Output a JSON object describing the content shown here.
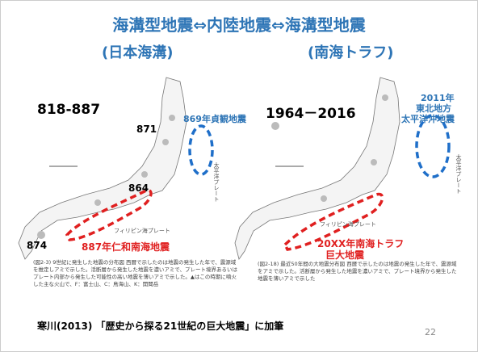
{
  "title": "海溝型地震⇔内陸地震⇔海溝型地震",
  "subtitle_left": "(日本海溝)",
  "subtitle_right": "(南海トラフ)",
  "left_map": {
    "period": "818-887",
    "labels": [
      "871",
      "864",
      "874"
    ],
    "east_quake": "869年貞観地震",
    "south_quake": "887年仁和南海地震",
    "pacific_plate": "太平洋プレート",
    "philippine_plate": "フィリピン海プレート",
    "caption": "(図2-3) 9世紀に発生した地震の分布図 西暦で示したのは地震の発生した年で、震源域を推定しアミで示した。活断層から発生した地震を濃いアミで、プレート境界あるいはプレート内部から発生した可能性の高い地震を薄いアミで示した。▲はこの時期に噴火した主な火山で、F：富士山、C：鳥海山、K：開聞岳"
  },
  "right_map": {
    "period": "1964－2016",
    "east_quake": [
      "2011年",
      "東北地方",
      "太平洋沖地震"
    ],
    "south_quake": [
      "20XX年南海トラフ",
      "巨大地震"
    ],
    "pacific_plate": "太平洋プレート",
    "philippine_plate": "フィリピン海プレート",
    "caption": "(図2-18) 最近50年間の大地震分布図 西暦で示したのは地震の発生した年で、震源域をアミで示した。活断層から発生した地震を濃いアミで、プレート境界から発生した地震を薄いアミで示した"
  },
  "footer": "寒川(2013) 「歴史から探る21世紀の巨大地震」に加筆",
  "page_number": "22"
}
